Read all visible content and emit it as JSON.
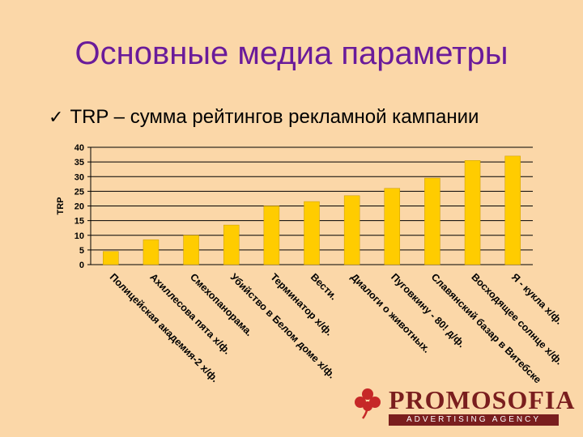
{
  "slide": {
    "title": "Основные медиа параметры",
    "bullet_icon": "check-icon",
    "bullet_text": "TRP – сумма рейтингов рекламной кампании"
  },
  "logo": {
    "word": "PROMOSOFIA",
    "tagline": "ADVERTISING AGENCY",
    "color": "#7a1e1e"
  },
  "chart_data": {
    "type": "bar",
    "ylabel": "TRP",
    "xlabel": "",
    "ylim": [
      0,
      40
    ],
    "yticks": [
      0,
      5,
      10,
      15,
      20,
      25,
      30,
      35,
      40
    ],
    "grid": true,
    "bar_color": "#ffcc00",
    "categories": [
      "Полицейская академия-2 х/ф.",
      "Ахиллесова пята х/ф.",
      "Смехопанорама.",
      "Убийство в Белом доме х/ф.",
      "Терминатор х/ф.",
      "Вести.",
      "Диалоги о животных.",
      "Пуговкину - 80! д/ф.",
      "Славянский базар в Витебске",
      "Восходящее солнце х/ф.",
      "Я - кукла х/ф."
    ],
    "values": [
      4.5,
      8.5,
      10,
      13.5,
      20,
      21.5,
      23.5,
      26,
      29.5,
      35.5,
      37
    ]
  }
}
